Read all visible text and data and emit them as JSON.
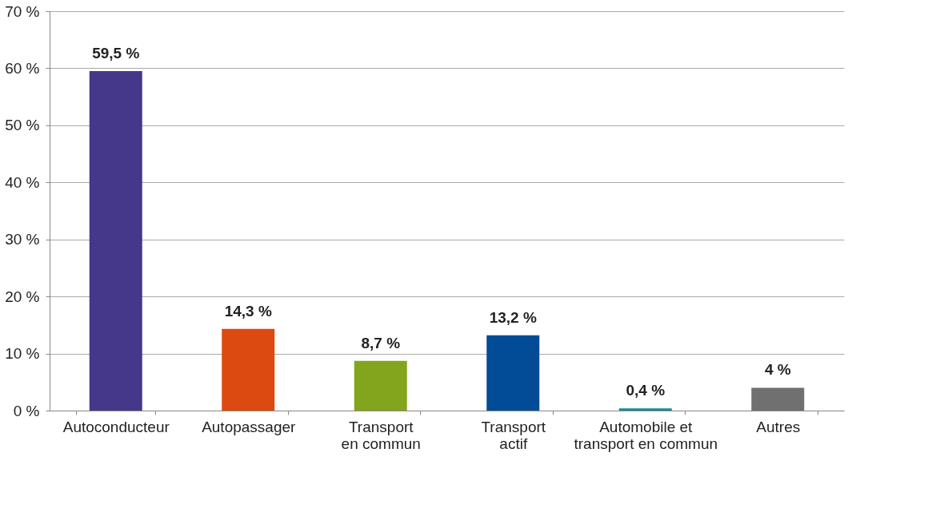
{
  "chart_data": {
    "type": "bar",
    "categories": [
      "Autoconducteur",
      "Autopassager",
      "Transport en commun",
      "Transport actif",
      "Automobile et transport en commun",
      "Autres"
    ],
    "values": [
      59.5,
      14.3,
      8.7,
      13.2,
      0.4,
      4
    ],
    "colors": [
      "#45378a",
      "#dc4a11",
      "#83a51e",
      "#024b96",
      "#168a9a",
      "#707070"
    ],
    "value_labels": [
      "59,5 %",
      "14,3 %",
      "8,7 %",
      "13,2 %",
      "0,4 %",
      "4 %"
    ],
    "ylim": [
      0,
      70
    ],
    "yticks": [
      {
        "value": 0,
        "label": "0 %"
      },
      {
        "value": 10,
        "label": "10 %"
      },
      {
        "value": 20,
        "label": "20 %"
      },
      {
        "value": 30,
        "label": "30 %"
      },
      {
        "value": 40,
        "label": "40 %"
      },
      {
        "value": 50,
        "label": "50 %"
      },
      {
        "value": 60,
        "label": "60 %"
      },
      {
        "value": 70,
        "label": "70 %"
      }
    ],
    "grid": "y"
  }
}
